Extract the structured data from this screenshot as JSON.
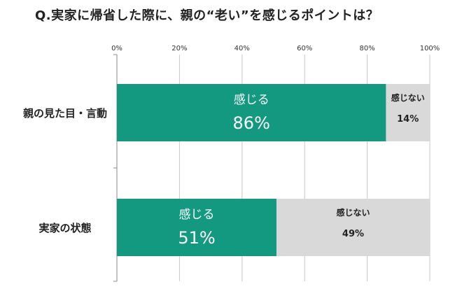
{
  "chart_data": {
    "type": "bar",
    "orientation": "horizontal",
    "stacked": true,
    "title": "Q.実家に帰省した際に、親の“老い”を感じるポイントは？",
    "xlim": [
      0,
      100
    ],
    "x_ticks": [
      "0%",
      "20%",
      "40%",
      "60%",
      "80%",
      "100%"
    ],
    "grid": true,
    "categories": [
      "親の見た目・言動",
      "実家の状態"
    ],
    "series": [
      {
        "name": "感じる",
        "values": [
          86,
          51
        ],
        "labels": [
          "86%",
          "51%"
        ],
        "color": "#139980"
      },
      {
        "name": "感じない",
        "values": [
          14,
          49
        ],
        "labels": [
          "14%",
          "49%"
        ],
        "color": "#d9d9d9"
      }
    ]
  }
}
